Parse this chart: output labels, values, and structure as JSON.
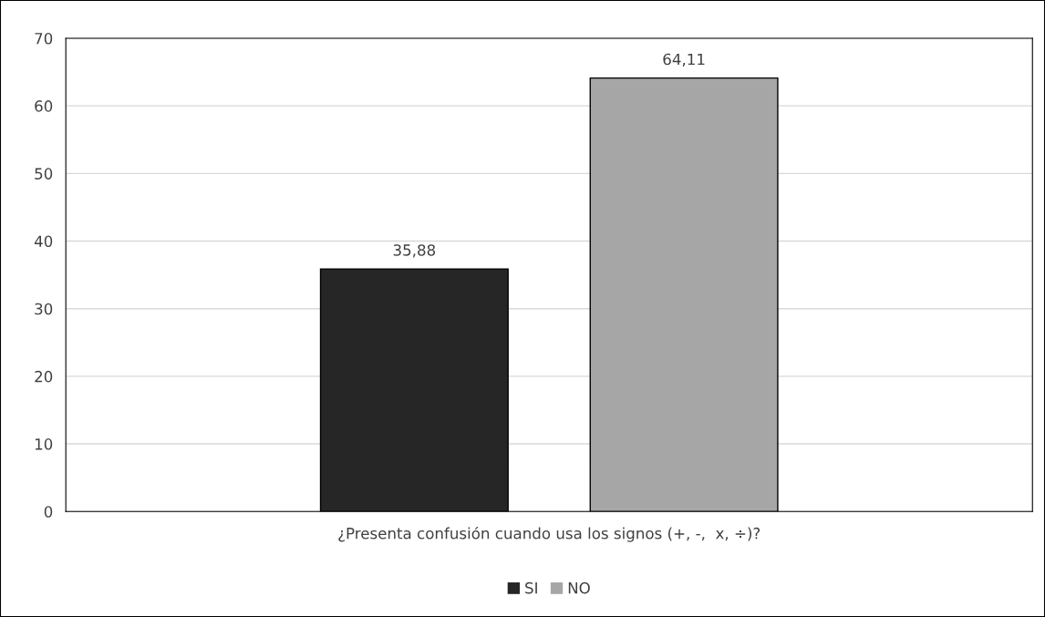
{
  "chart_data": {
    "type": "bar",
    "categories": [
      "¿Presenta confusión cuando usa los signos (+, -,  x, ÷)?"
    ],
    "series": [
      {
        "name": "SI",
        "color": "#262626",
        "values": [
          35.88
        ],
        "value_labels": [
          "35,88"
        ]
      },
      {
        "name": "NO",
        "color": "#a6a6a6",
        "values": [
          64.11
        ],
        "value_labels": [
          "64,11"
        ]
      }
    ],
    "ylim": [
      0,
      70
    ],
    "yticks": [
      0,
      10,
      20,
      30,
      40,
      50,
      60,
      70
    ],
    "grid": "y",
    "legend": "bottom"
  }
}
